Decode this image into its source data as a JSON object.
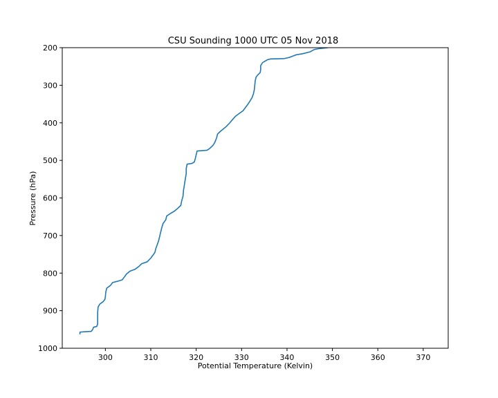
{
  "chart_data": {
    "type": "line",
    "title": "CSU Sounding 1000 UTC 05 Nov 2018",
    "xlabel": "Potential Temperature (Kelvin)",
    "ylabel": "Pressure (hPa)",
    "xlim": [
      290.5,
      375.5
    ],
    "ylim": [
      1000,
      200
    ],
    "y_inverted": true,
    "xticks": [
      300,
      310,
      320,
      330,
      340,
      350,
      360,
      370
    ],
    "xtick_labels": [
      "300",
      "310",
      "320",
      "330",
      "340",
      "350",
      "360",
      "370"
    ],
    "yticks": [
      200,
      300,
      400,
      500,
      600,
      700,
      800,
      900,
      1000
    ],
    "ytick_labels": [
      "200",
      "300",
      "400",
      "500",
      "600",
      "700",
      "800",
      "900",
      "1000"
    ],
    "grid": false,
    "line_color": "#1f77b4",
    "series": [
      {
        "name": "Potential Temperature",
        "points": [
          [
            294.4,
            963
          ],
          [
            294.4,
            957
          ],
          [
            295.6,
            956
          ],
          [
            296.9,
            955
          ],
          [
            297.2,
            950
          ],
          [
            297.4,
            944
          ],
          [
            298.1,
            942
          ],
          [
            298.3,
            935
          ],
          [
            298.3,
            920
          ],
          [
            298.3,
            905
          ],
          [
            298.4,
            890
          ],
          [
            298.8,
            882
          ],
          [
            299.5,
            876
          ],
          [
            299.9,
            870
          ],
          [
            300.0,
            862
          ],
          [
            300.1,
            850
          ],
          [
            300.3,
            840
          ],
          [
            301.1,
            833
          ],
          [
            301.6,
            825
          ],
          [
            302.6,
            822
          ],
          [
            303.7,
            818
          ],
          [
            304.2,
            810
          ],
          [
            304.6,
            803
          ],
          [
            305.4,
            795
          ],
          [
            306.5,
            790
          ],
          [
            307.4,
            782
          ],
          [
            308.0,
            775
          ],
          [
            309.2,
            770
          ],
          [
            310.0,
            760
          ],
          [
            310.5,
            752
          ],
          [
            310.9,
            745
          ],
          [
            311.1,
            735
          ],
          [
            311.4,
            725
          ],
          [
            311.7,
            715
          ],
          [
            312.0,
            700
          ],
          [
            312.2,
            690
          ],
          [
            312.4,
            680
          ],
          [
            312.7,
            668
          ],
          [
            313.3,
            658
          ],
          [
            313.5,
            648
          ],
          [
            314.5,
            640
          ],
          [
            315.2,
            635
          ],
          [
            315.9,
            628
          ],
          [
            316.6,
            620
          ],
          [
            316.8,
            608
          ],
          [
            317.1,
            595
          ],
          [
            317.2,
            580
          ],
          [
            317.4,
            565
          ],
          [
            317.6,
            550
          ],
          [
            317.8,
            535
          ],
          [
            317.8,
            522
          ],
          [
            318.0,
            510
          ],
          [
            319.1,
            508
          ],
          [
            319.6,
            504
          ],
          [
            319.8,
            495
          ],
          [
            320.0,
            485
          ],
          [
            320.2,
            475
          ],
          [
            322.4,
            473
          ],
          [
            323.0,
            468
          ],
          [
            323.7,
            460
          ],
          [
            324.1,
            452
          ],
          [
            324.5,
            440
          ],
          [
            324.7,
            430
          ],
          [
            325.3,
            423
          ],
          [
            326.0,
            416
          ],
          [
            326.6,
            410
          ],
          [
            327.4,
            400
          ],
          [
            328.1,
            390
          ],
          [
            328.6,
            383
          ],
          [
            329.5,
            375
          ],
          [
            330.3,
            368
          ],
          [
            330.8,
            360
          ],
          [
            331.3,
            352
          ],
          [
            331.8,
            343
          ],
          [
            332.3,
            333
          ],
          [
            332.6,
            323
          ],
          [
            332.8,
            312
          ],
          [
            332.9,
            300
          ],
          [
            333.0,
            288
          ],
          [
            333.2,
            278
          ],
          [
            333.6,
            272
          ],
          [
            334.1,
            266
          ],
          [
            334.2,
            258
          ],
          [
            334.2,
            248
          ],
          [
            334.6,
            240
          ],
          [
            335.7,
            232
          ],
          [
            336.4,
            230
          ],
          [
            339.4,
            229
          ],
          [
            340.5,
            226
          ],
          [
            342.0,
            219
          ],
          [
            343.5,
            216
          ],
          [
            345.1,
            211
          ],
          [
            346.0,
            205
          ],
          [
            346.8,
            203
          ],
          [
            349.0,
            200
          ]
        ]
      }
    ]
  }
}
